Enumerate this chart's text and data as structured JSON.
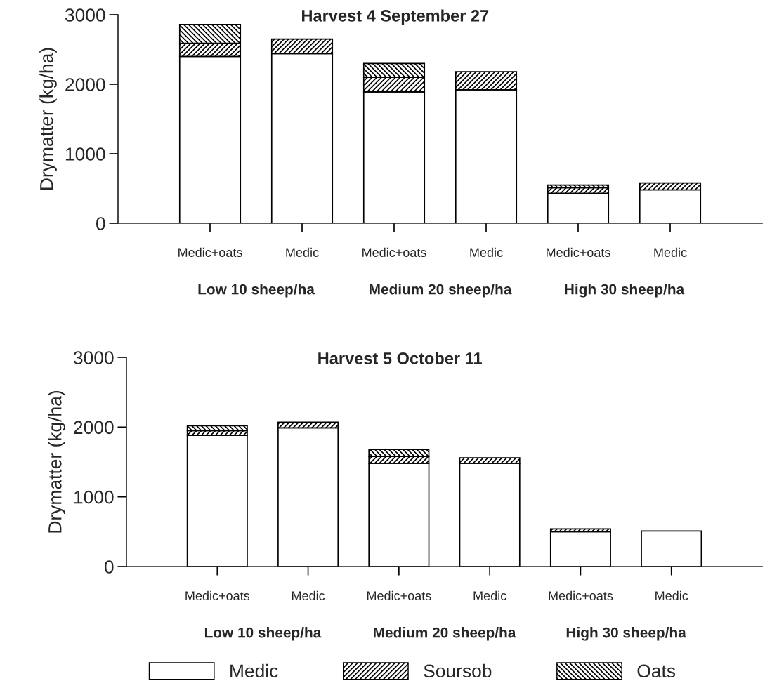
{
  "chart_data": [
    {
      "type": "bar",
      "title": "Harvest 4 September 27",
      "ylabel": "Drymatter (kg/ha)",
      "stacked": true,
      "categories": [
        "Medic+oats",
        "Medic",
        "Medic+oats",
        "Medic",
        "Medic+oats",
        "Medic"
      ],
      "series": [
        {
          "color": "#ffffff",
          "values": [
            2400,
            2440,
            1890,
            1920,
            430,
            480
          ]
        },
        {
          "color": "#000000",
          "values": [
            190,
            210,
            210,
            260,
            80,
            100
          ]
        },
        {
          "color": "#000000",
          "values": [
            270,
            null,
            200,
            null,
            40,
            null
          ]
        }
      ],
      "ylim": [
        0,
        3000
      ],
      "yticks": [
        0,
        1000,
        2000,
        3000
      ],
      "grid": false,
      "annotations": [
        "Low 10 sheep/ha",
        "Medium 20 sheep/ha",
        "High 30 sheep/ha"
      ]
    },
    {
      "type": "bar",
      "title": "Harvest 5 October 11",
      "ylabel": "Drymatter (kg/ha)",
      "stacked": true,
      "categories": [
        "Medic+oats",
        "Medic",
        "Medic+oats",
        "Medic",
        "Medic+oats",
        "Medic"
      ],
      "series": [
        {
          "name": "Medic",
          "color": "#ffffff",
          "values": [
            1880,
            1990,
            1480,
            1480,
            500,
            510
          ]
        },
        {
          "name": "Soursob",
          "color": "#000000",
          "values": [
            70,
            80,
            100,
            80,
            40,
            null
          ]
        },
        {
          "name": "Oats",
          "color": "#000000",
          "values": [
            70,
            null,
            100,
            null,
            null,
            null
          ]
        }
      ],
      "ylim": [
        0,
        3000
      ],
      "yticks": [
        0,
        1000,
        2000,
        3000
      ],
      "grid": false,
      "legend": "bottom",
      "annotations": [
        "Low 10 sheep/ha",
        "Medium 20 sheep/ha",
        "High 30 sheep/ha"
      ]
    }
  ]
}
